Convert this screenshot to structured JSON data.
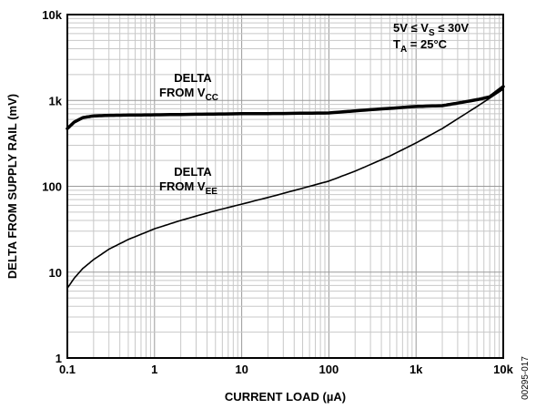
{
  "chart_data": {
    "type": "line",
    "x_scale": "log",
    "y_scale": "log",
    "xlim": [
      0.1,
      10000
    ],
    "ylim": [
      1,
      10000
    ],
    "xlabel": "CURRENT LOAD (µA)",
    "ylabel": "DELTA FROM SUPPLY RAIL (mV)",
    "x_ticks": [
      0.1,
      1,
      10,
      100,
      1000,
      10000
    ],
    "x_tick_labels": [
      "0.1",
      "1",
      "10",
      "100",
      "1k",
      "10k"
    ],
    "y_ticks": [
      1,
      10,
      100,
      1000,
      10000
    ],
    "y_tick_labels": [
      "1",
      "10",
      "100",
      "1k",
      "10k"
    ],
    "grid": true,
    "series": [
      {
        "label_line1": "DELTA",
        "label_line2": "FROM V",
        "label_sub": "CC",
        "color": "#000000",
        "thick": true,
        "x": [
          0.1,
          0.12,
          0.15,
          0.2,
          0.3,
          0.5,
          1,
          3,
          10,
          30,
          100,
          300,
          1000,
          2000,
          3000,
          5000,
          7000,
          10000
        ],
        "y": [
          470,
          560,
          630,
          660,
          670,
          675,
          680,
          690,
          700,
          705,
          715,
          780,
          850,
          870,
          930,
          1020,
          1100,
          1450
        ]
      },
      {
        "label_line1": "DELTA",
        "label_line2": "FROM V",
        "label_sub": "EE",
        "color": "#000000",
        "thick": false,
        "x": [
          0.1,
          0.12,
          0.15,
          0.2,
          0.3,
          0.5,
          1,
          2,
          3,
          5,
          10,
          20,
          50,
          100,
          200,
          500,
          1000,
          2000,
          5000,
          10000
        ],
        "y": [
          6.5,
          8.5,
          11,
          14,
          18.5,
          24,
          32,
          40,
          45,
          52,
          62,
          74,
          95,
          115,
          150,
          225,
          320,
          470,
          850,
          1350
        ]
      }
    ],
    "annotation": {
      "line1_prefix": "5V ≤ V",
      "line1_sub": "S",
      "line1_suffix": " ≤ 30V",
      "line2_prefix": "T",
      "line2_sub": "A",
      "line2_suffix": " = 25°C"
    },
    "figure_id": "00295-017"
  }
}
